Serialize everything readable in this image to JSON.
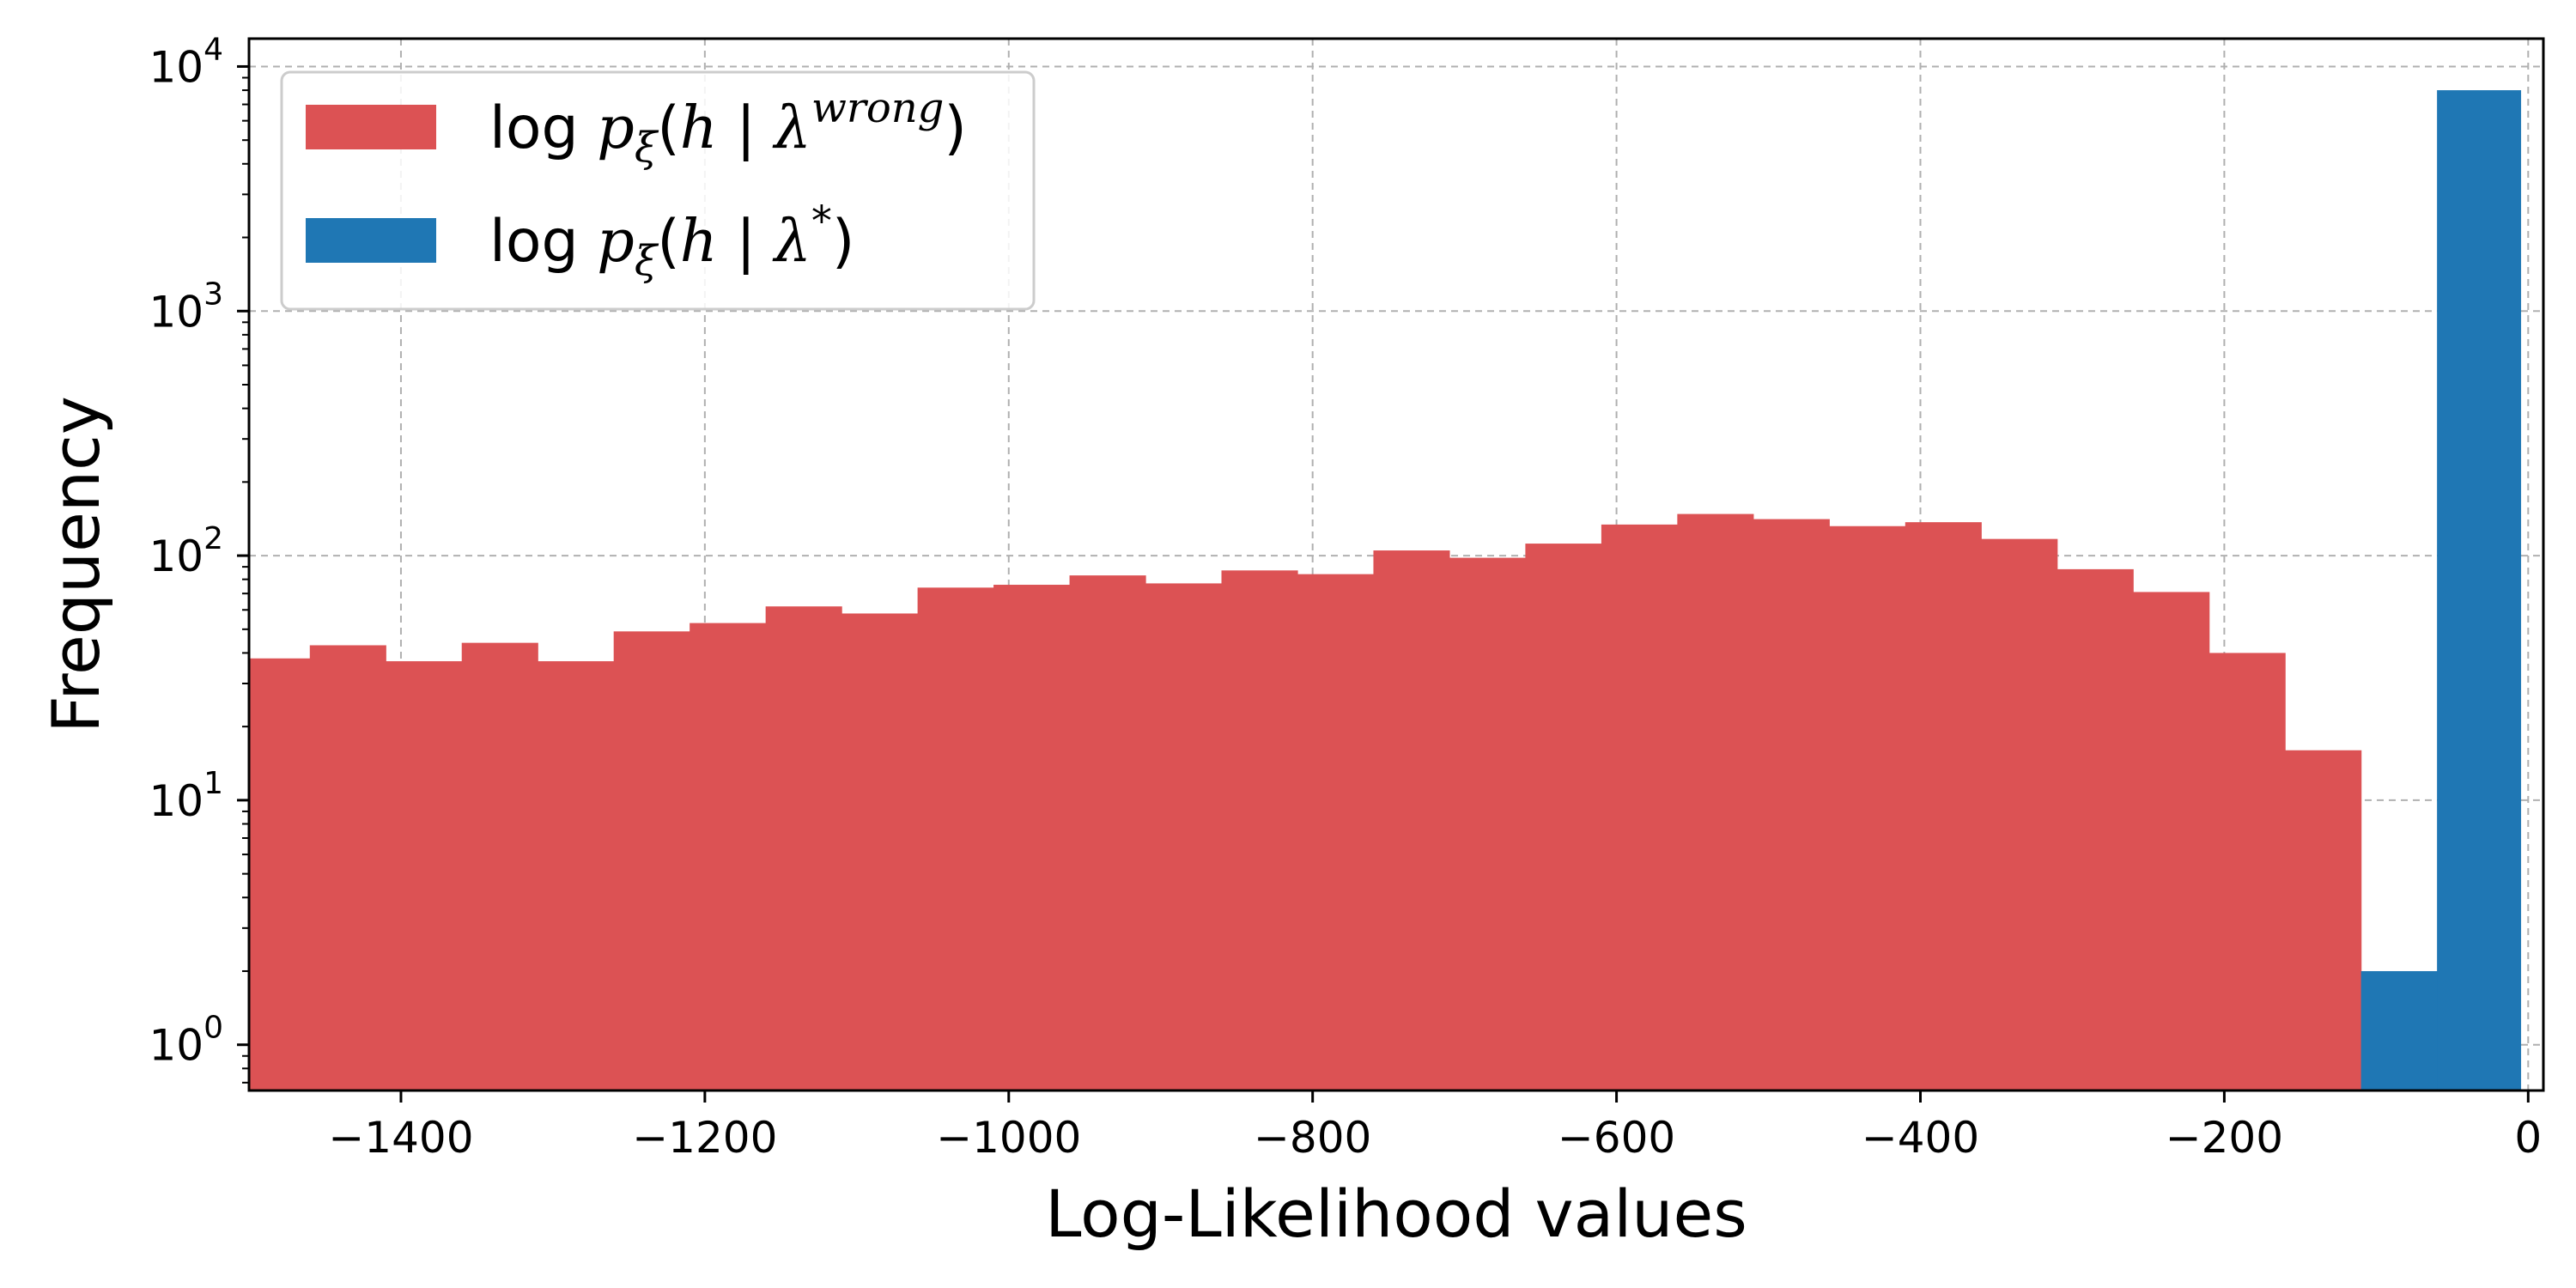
{
  "chart_data": {
    "type": "bar",
    "title": "",
    "xlabel": "Log-Likelihood values",
    "ylabel": "Frequency",
    "xlim": [
      -1500,
      10
    ],
    "ylim": [
      0.65,
      13000
    ],
    "yscale": "log",
    "grid": true,
    "legend_position": "top-left",
    "x_ticks": [
      "−1400",
      "−1200",
      "−1000",
      "−800",
      "−600",
      "−400",
      "−200",
      "0"
    ],
    "x_tick_values": [
      -1400,
      -1200,
      -1000,
      -800,
      -600,
      -400,
      -200,
      0
    ],
    "y_ticks": [
      {
        "value": 1,
        "base": "10",
        "exp": "0"
      },
      {
        "value": 10,
        "base": "10",
        "exp": "1"
      },
      {
        "value": 100,
        "base": "10",
        "exp": "2"
      },
      {
        "value": 1000,
        "base": "10",
        "exp": "3"
      },
      {
        "value": 10000,
        "base": "10",
        "exp": "4"
      }
    ],
    "series": [
      {
        "legend_label": "log pξ(h | λ^wrong)",
        "color": "#dc5254",
        "bin_edges": [
          -1510,
          -1460,
          -1410,
          -1360,
          -1310,
          -1260,
          -1210,
          -1160,
          -1110,
          -1060,
          -1010,
          -960,
          -910,
          -860,
          -810,
          -760,
          -710,
          -660,
          -610,
          -560,
          -510,
          -460,
          -410,
          -360,
          -310,
          -260,
          -210,
          -160,
          -110
        ],
        "counts": [
          38,
          43,
          37,
          44,
          37,
          49,
          53,
          62,
          58,
          74,
          76,
          83,
          77,
          87,
          84,
          105,
          98,
          112,
          134,
          148,
          141,
          132,
          137,
          117,
          88,
          71,
          40,
          16
        ]
      },
      {
        "legend_label": "log pξ(h | λ*)",
        "color": "#1f77b4",
        "bin_edges": [
          -110,
          -60,
          -5
        ],
        "counts": [
          2,
          8000
        ]
      }
    ]
  },
  "legend": {
    "items": [
      {
        "prefix": "log ",
        "var": "p",
        "sub": "ξ",
        "open": "(",
        "h": "h",
        "bar": " | ",
        "lam": "λ",
        "sup": "wrong",
        "close": ")"
      },
      {
        "prefix": "log ",
        "var": "p",
        "sub": "ξ",
        "open": "(",
        "h": "h",
        "bar": " | ",
        "lam": "λ",
        "sup": "*",
        "close": ")"
      }
    ]
  }
}
